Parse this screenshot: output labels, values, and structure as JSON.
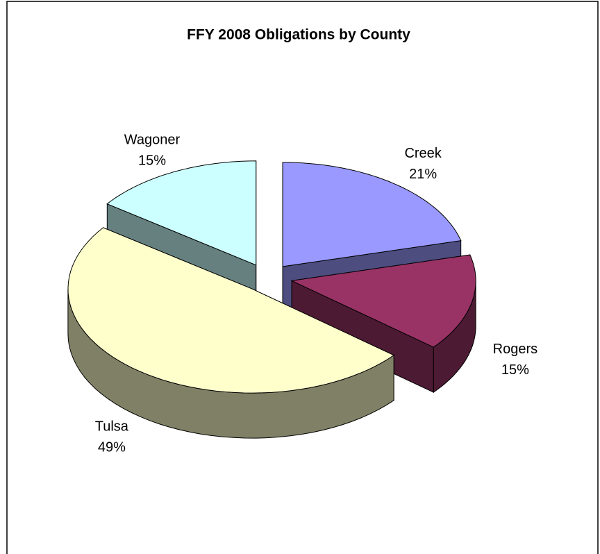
{
  "chart_data": {
    "type": "pie3d",
    "title": "FFY 2008 Obligations by County",
    "categories": [
      "Creek",
      "Rogers",
      "Tulsa",
      "Wagoner"
    ],
    "values": [
      21,
      15,
      49,
      15
    ],
    "value_labels": [
      "21%",
      "15%",
      "49%",
      "15%"
    ],
    "colors": [
      "#9999ff",
      "#993366",
      "#ffffcc",
      "#ccffff"
    ]
  }
}
